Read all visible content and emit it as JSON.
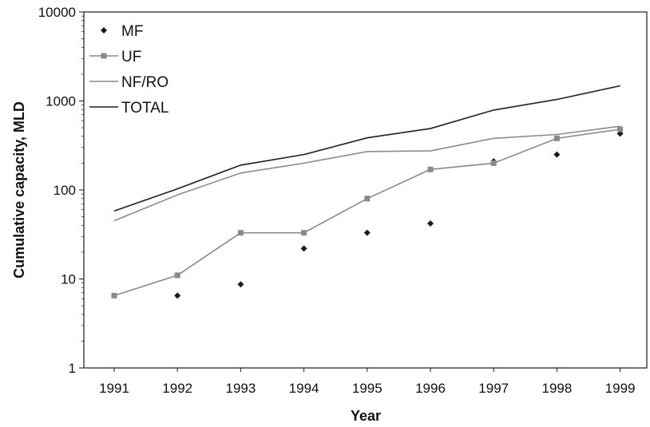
{
  "chart_data": {
    "type": "line",
    "title": "",
    "xlabel": "Year",
    "ylabel": "Cumulative capacity, MLD",
    "x": [
      1991,
      1992,
      1993,
      1994,
      1995,
      1996,
      1997,
      1998,
      1999
    ],
    "yscale": "log",
    "ylim": [
      1,
      10000
    ],
    "yticks": [
      "1",
      "10",
      "100",
      "1000",
      "10000"
    ],
    "grid": false,
    "legend": "top-left",
    "series": [
      {
        "name": "MF",
        "style": "markers",
        "marker": "diamond",
        "color": "#1a1a1a",
        "values": [
          null,
          6.5,
          8.7,
          22,
          33,
          42,
          210,
          250,
          430
        ]
      },
      {
        "name": "UF",
        "style": "line-markers",
        "marker": "square",
        "color": "#8a8a8a",
        "marker_color": "#8a8a8a",
        "values": [
          6.5,
          11,
          33,
          33,
          80,
          170,
          200,
          380,
          480
        ]
      },
      {
        "name": "NF/RO",
        "style": "line",
        "color": "#8c8c8c",
        "values": [
          45,
          88,
          155,
          200,
          270,
          275,
          380,
          420,
          520
        ]
      },
      {
        "name": "TOTAL",
        "style": "line",
        "color": "#1f1f1f",
        "values": [
          58,
          103,
          190,
          250,
          385,
          490,
          790,
          1040,
          1480
        ]
      }
    ]
  }
}
